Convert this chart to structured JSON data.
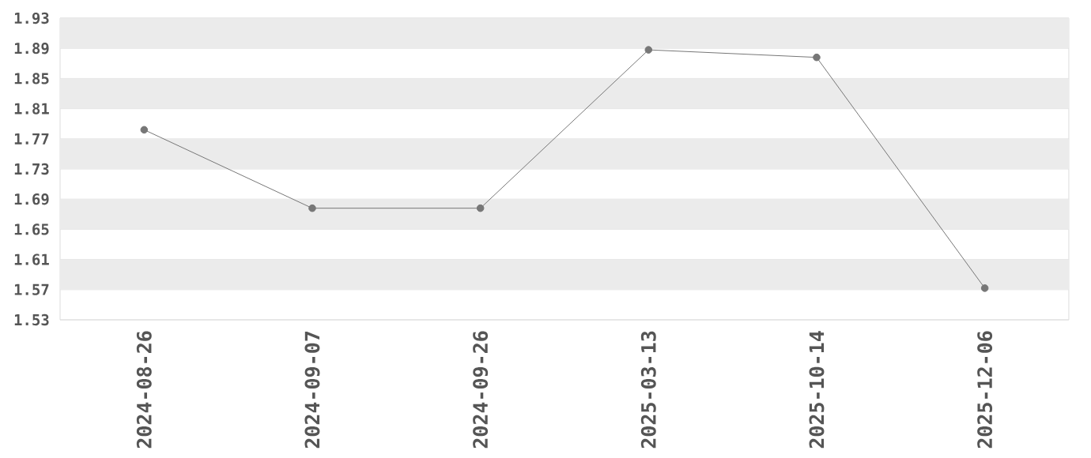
{
  "chart_data": {
    "type": "line",
    "categories": [
      "2024-08-26",
      "2024-09-07",
      "2024-09-26",
      "2025-03-13",
      "2025-10-14",
      "2025-12-06"
    ],
    "values": [
      1.782,
      1.678,
      1.678,
      1.888,
      1.878,
      1.572
    ],
    "color": "#777777",
    "ylim": [
      1.53,
      1.93
    ],
    "yticks": [
      1.53,
      1.57,
      1.61,
      1.65,
      1.69,
      1.73,
      1.77,
      1.81,
      1.85,
      1.89,
      1.93
    ],
    "grid": "y",
    "marker": "circle",
    "line_style": "solid"
  }
}
